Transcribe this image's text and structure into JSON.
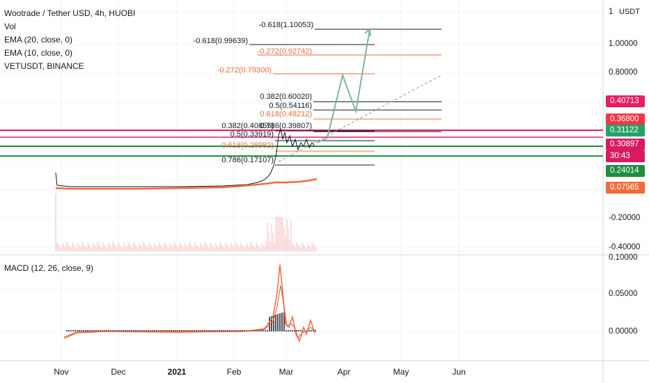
{
  "legend": {
    "title": "Wootrade / Tether USD, 4h, HUOBI",
    "lines": [
      "Vol",
      "EMA (20, close, 0)",
      "EMA (10, close, 0)",
      "VETUSDT, BINANCE"
    ]
  },
  "macd_label": "MACD (12, 26, close, 9)",
  "price_axis": {
    "unit": "USDT",
    "ticks": [
      "1",
      "1.00000",
      "0.80000",
      "-0.20000",
      "-0.40000"
    ],
    "tags": [
      {
        "text": "0.40713",
        "color": "#e91e63"
      },
      {
        "text": "0.36800",
        "color": "#f23645"
      },
      {
        "text": "0.31122",
        "color": "#26a269"
      },
      {
        "text": "0.30897",
        "color": "#d81b60"
      },
      {
        "text": "30:43",
        "color": "#d81b60"
      },
      {
        "text": "0.24014",
        "color": "#1e8e3e"
      },
      {
        "text": "0.07565",
        "color": "#f26b38"
      }
    ]
  },
  "macd_axis": {
    "ticks": [
      "0.10000",
      "0.05000",
      "0.00000"
    ]
  },
  "time_axis": {
    "labels": [
      {
        "text": "Nov",
        "bold": false
      },
      {
        "text": "Dec",
        "bold": false
      },
      {
        "text": "2021",
        "bold": true
      },
      {
        "text": "Feb",
        "bold": false
      },
      {
        "text": "Mar",
        "bold": false
      },
      {
        "text": "Apr",
        "bold": false
      },
      {
        "text": "May",
        "bold": false
      },
      {
        "text": "Jun",
        "bold": false
      }
    ]
  },
  "fib_levels": [
    {
      "text": "-0.618(1.10053)",
      "color": "#131722"
    },
    {
      "text": "-0.618(0.99639)",
      "color": "#131722"
    },
    {
      "text": "-0.272(0.92742)",
      "color": "#f26b38"
    },
    {
      "text": "-0.272(0.79300)",
      "color": "#f26b38"
    },
    {
      "text": "0.382(0.60020)",
      "color": "#131722"
    },
    {
      "text": "0.5(0.54116)",
      "color": "#131722"
    },
    {
      "text": "0.618(0.48212)",
      "color": "#f26b38"
    },
    {
      "text": "0.786(0.39807)",
      "color": "#131722"
    },
    {
      "text": "0.382(0.40855)",
      "color": "#131722"
    },
    {
      "text": "0.5(0.33919)",
      "color": "#131722"
    },
    {
      "text": "0.618(0.26982)",
      "color": "#f26b38"
    },
    {
      "text": "0.786(0.17107)",
      "color": "#131722"
    }
  ],
  "colors": {
    "ema": "#f26b38",
    "price": "#131722",
    "projection": "#7fb59a",
    "grid": "#f0f3fa",
    "hline_pink": "#e91e63",
    "hline_green": "#1e8e3e"
  }
}
